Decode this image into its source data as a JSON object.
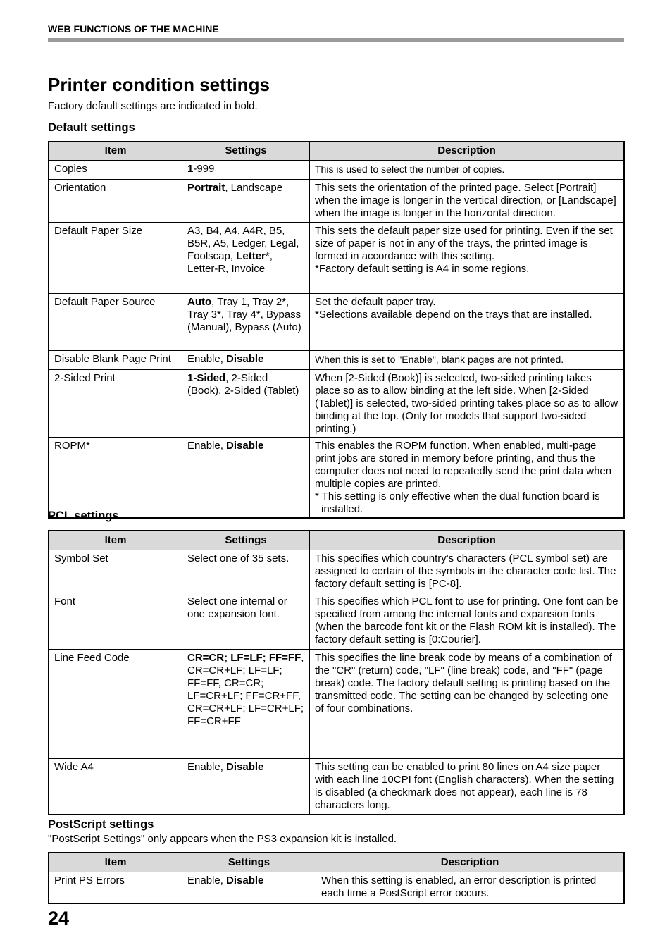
{
  "running_header": "WEB FUNCTIONS OF THE MACHINE",
  "title": "Printer condition settings",
  "intro": "Factory default settings are indicated in bold.",
  "columns": {
    "item": "Item",
    "settings": "Settings",
    "description": "Description"
  },
  "sections": [
    {
      "heading": "Default settings",
      "note": "",
      "rows": [
        {
          "item": "Copies",
          "settings": [
            {
              "t": "1",
              "b": true
            },
            {
              "t": "-999"
            }
          ],
          "description": [
            "This is used to select the number of copies."
          ]
        },
        {
          "item": "Orientation",
          "settings": [
            {
              "t": "Portrait",
              "b": true
            },
            {
              "t": ", Landscape"
            }
          ],
          "description": [
            "This sets the orientation of the printed page. Select [Portrait] when the image is longer in the vertical direction, or [Landscape] when the image is longer in the horizontal direction."
          ]
        },
        {
          "item": "Default Paper Size",
          "settings": [
            {
              "t": "A3, B4, A4, A4R, B5, B5R, A5, Ledger, Legal, Foolscap, "
            },
            {
              "t": "Letter",
              "b": true
            },
            {
              "t": "*, Letter-R, Invoice"
            }
          ],
          "description": [
            "This sets the default paper size used for printing. Even if the set size of paper is not in any of the trays, the printed image is formed in accordance with this setting.",
            "*Factory default setting is A4 in some regions."
          ]
        },
        {
          "item": "Default Paper Source",
          "settings": [
            {
              "t": "Auto",
              "b": true
            },
            {
              "t": ", Tray 1, Tray 2*, Tray 3*, Tray 4*, Bypass (Manual), Bypass (Auto)"
            }
          ],
          "description": [
            "Set the default paper tray.",
            "*Selections available depend on the trays that are installed."
          ]
        },
        {
          "item": "Disable Blank Page Print",
          "settings": [
            {
              "t": "Enable, "
            },
            {
              "t": "Disable",
              "b": true
            }
          ],
          "description": [
            "When this is set to \"Enable\", blank pages are not printed."
          ]
        },
        {
          "item": "2-Sided Print",
          "settings": [
            {
              "t": "1-Sided",
              "b": true
            },
            {
              "t": ", 2-Sided (Book), 2-Sided (Tablet)"
            }
          ],
          "description": [
            "When [2-Sided (Book)] is selected, two-sided printing takes place so as to allow binding at the left side. When [2-Sided (Tablet)] is selected, two-sided printing takes place so as to allow binding at the top. (Only for models that support two-sided printing.)"
          ]
        },
        {
          "item": "ROPM*",
          "settings": [
            {
              "t": "Enable, "
            },
            {
              "t": "Disable",
              "b": true
            }
          ],
          "description": [
            "This enables the ROPM function. When enabled, multi-page print jobs are stored in memory before printing, and thus the computer does not need to repeatedly send the print data when multiple copies are printed.",
            "* This setting is only effective when the dual function board is installed."
          ]
        }
      ]
    },
    {
      "heading": "PCL settings",
      "note": "",
      "rows": [
        {
          "item": "Symbol Set",
          "settings": [
            {
              "t": "Select one of 35 sets."
            }
          ],
          "description": [
            "This specifies which country's characters (PCL symbol set) are assigned to certain of the symbols in the character code list. The factory default setting is [PC-8]."
          ]
        },
        {
          "item": "Font",
          "settings": [
            {
              "t": "Select one internal or one expansion font."
            }
          ],
          "description": [
            "This specifies which PCL font to use for printing. One font can be specified from among the internal fonts and expansion fonts (when the barcode font kit or the Flash ROM kit is installed). The factory default setting is [0:Courier]."
          ]
        },
        {
          "item": "Line Feed Code",
          "settings": [
            {
              "t": "CR=CR; LF=LF; FF=FF",
              "b": true
            },
            {
              "t": ", CR=CR+LF; LF=LF; FF=FF, CR=CR; LF=CR+LF; FF=CR+FF, CR=CR+LF; LF=CR+LF; FF=CR+FF"
            }
          ],
          "description": [
            "This specifies the line break code by means of a combination of the \"CR\" (return) code, \"LF\" (line break) code, and \"FF\" (page break) code. The factory default setting is printing based on the transmitted code. The setting can be changed by selecting one of four combinations."
          ]
        },
        {
          "item": "Wide A4",
          "settings": [
            {
              "t": "Enable, "
            },
            {
              "t": "Disable",
              "b": true
            }
          ],
          "description": [
            "This setting can be enabled to print 80 lines on A4 size paper with each line 10CPI font (English characters). When the setting is disabled (a checkmark does not appear), each line is 78 characters long."
          ]
        }
      ]
    },
    {
      "heading": "PostScript settings",
      "note": "\"PostScript Settings\" only appears when the PS3 expansion kit is installed.",
      "rows": [
        {
          "item": "Print PS Errors",
          "settings": [
            {
              "t": "Enable, "
            },
            {
              "t": "Disable",
              "b": true
            }
          ],
          "description": [
            "When this setting is enabled, an error description is printed each time a PostScript error occurs."
          ]
        }
      ]
    }
  ],
  "page_number": "24"
}
